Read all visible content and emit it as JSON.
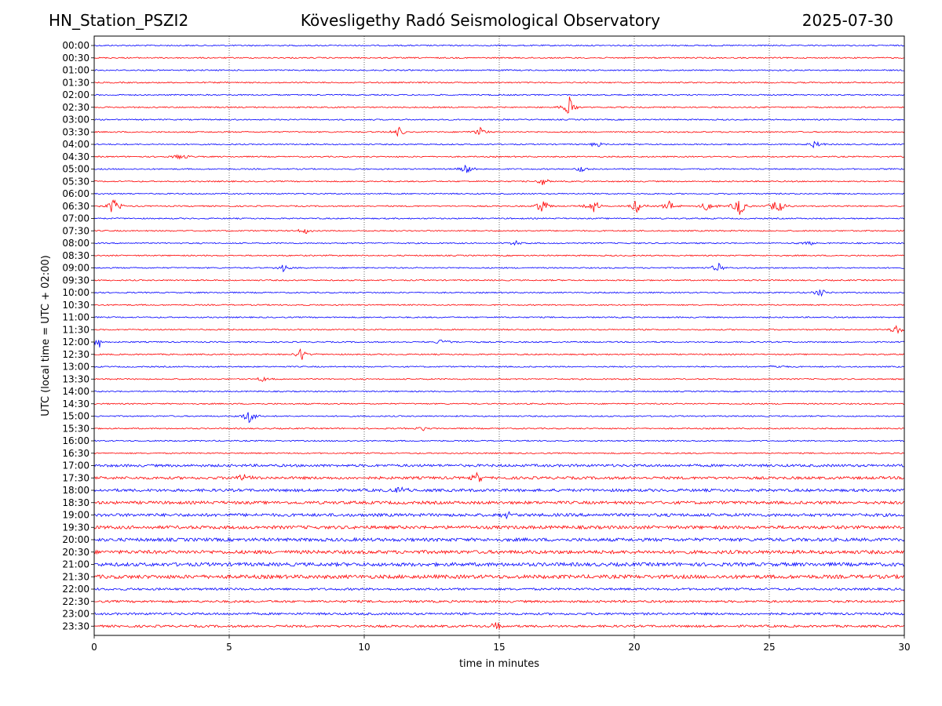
{
  "header": {
    "station": "HN_Station_PSZI2",
    "observatory": "Kövesligethy Radó Seismological Observatory",
    "date": "2025-07-30"
  },
  "chart_data": {
    "type": "line",
    "title": "Kövesligethy Radó Seismological Observatory",
    "xlabel": "time in minutes",
    "ylabel": "UTC (local time = UTC + 02:00)",
    "xlim": [
      0,
      30
    ],
    "xticks": [
      0,
      5,
      10,
      15,
      20,
      25,
      30
    ],
    "vertical_gridlines": [
      5,
      10,
      15,
      20,
      25
    ],
    "grid": "vertical dotted",
    "colors": {
      "even_rows": "#0000ff",
      "odd_rows": "#ff0000"
    },
    "rows": [
      "00:00",
      "00:30",
      "01:00",
      "01:30",
      "02:00",
      "02:30",
      "03:00",
      "03:30",
      "04:00",
      "04:30",
      "05:00",
      "05:30",
      "06:00",
      "06:30",
      "07:00",
      "07:30",
      "08:00",
      "08:30",
      "09:00",
      "09:30",
      "10:00",
      "10:30",
      "11:00",
      "11:30",
      "12:00",
      "12:30",
      "13:00",
      "13:30",
      "14:00",
      "14:30",
      "15:00",
      "15:30",
      "16:00",
      "16:30",
      "17:00",
      "17:30",
      "18:00",
      "18:30",
      "19:00",
      "19:30",
      "20:00",
      "20:30",
      "21:00",
      "21:30",
      "22:00",
      "22:30",
      "23:00",
      "23:30"
    ],
    "events": [
      {
        "row": "02:30",
        "minute": 17.6,
        "amplitude": 0.6
      },
      {
        "row": "03:30",
        "minute": 11.3,
        "amplitude": 0.3
      },
      {
        "row": "03:30",
        "minute": 14.3,
        "amplitude": 0.3
      },
      {
        "row": "04:00",
        "minute": 18.6,
        "amplitude": 0.2
      },
      {
        "row": "04:00",
        "minute": 26.7,
        "amplitude": 0.25
      },
      {
        "row": "04:30",
        "minute": 3.2,
        "amplitude": 0.25
      },
      {
        "row": "05:00",
        "minute": 13.8,
        "amplitude": 0.35
      },
      {
        "row": "05:00",
        "minute": 18.0,
        "amplitude": 0.25
      },
      {
        "row": "05:30",
        "minute": 16.6,
        "amplitude": 0.25
      },
      {
        "row": "06:30",
        "minute": 0.7,
        "amplitude": 0.55
      },
      {
        "row": "06:30",
        "minute": 16.6,
        "amplitude": 0.55
      },
      {
        "row": "06:30",
        "minute": 18.5,
        "amplitude": 0.45
      },
      {
        "row": "06:30",
        "minute": 20.1,
        "amplitude": 0.45
      },
      {
        "row": "06:30",
        "minute": 21.3,
        "amplitude": 0.35
      },
      {
        "row": "06:30",
        "minute": 22.7,
        "amplitude": 0.4
      },
      {
        "row": "06:30",
        "minute": 23.9,
        "amplitude": 0.6
      },
      {
        "row": "06:30",
        "minute": 25.3,
        "amplitude": 0.55
      },
      {
        "row": "07:30",
        "minute": 7.8,
        "amplitude": 0.2
      },
      {
        "row": "08:00",
        "minute": 15.6,
        "amplitude": 0.15
      },
      {
        "row": "08:00",
        "minute": 26.5,
        "amplitude": 0.15
      },
      {
        "row": "09:00",
        "minute": 7.0,
        "amplitude": 0.2
      },
      {
        "row": "09:00",
        "minute": 23.1,
        "amplitude": 0.3
      },
      {
        "row": "10:00",
        "minute": 26.9,
        "amplitude": 0.25
      },
      {
        "row": "11:30",
        "minute": 29.7,
        "amplitude": 0.35
      },
      {
        "row": "12:00",
        "minute": 0.2,
        "amplitude": 0.35
      },
      {
        "row": "12:00",
        "minute": 12.9,
        "amplitude": 0.3
      },
      {
        "row": "12:30",
        "minute": 7.7,
        "amplitude": 0.45
      },
      {
        "row": "13:00",
        "minute": 25.3,
        "amplitude": 0.2
      },
      {
        "row": "13:30",
        "minute": 6.2,
        "amplitude": 0.2
      },
      {
        "row": "15:00",
        "minute": 5.8,
        "amplitude": 0.6
      },
      {
        "row": "15:30",
        "minute": 12.2,
        "amplitude": 0.15
      },
      {
        "row": "17:30",
        "minute": 5.5,
        "amplitude": 0.35
      },
      {
        "row": "17:30",
        "minute": 14.2,
        "amplitude": 0.3
      },
      {
        "row": "18:00",
        "minute": 11.3,
        "amplitude": 0.3
      },
      {
        "row": "19:00",
        "minute": 15.3,
        "amplitude": 0.25
      },
      {
        "row": "23:30",
        "minute": 14.9,
        "amplitude": 0.25
      }
    ]
  }
}
